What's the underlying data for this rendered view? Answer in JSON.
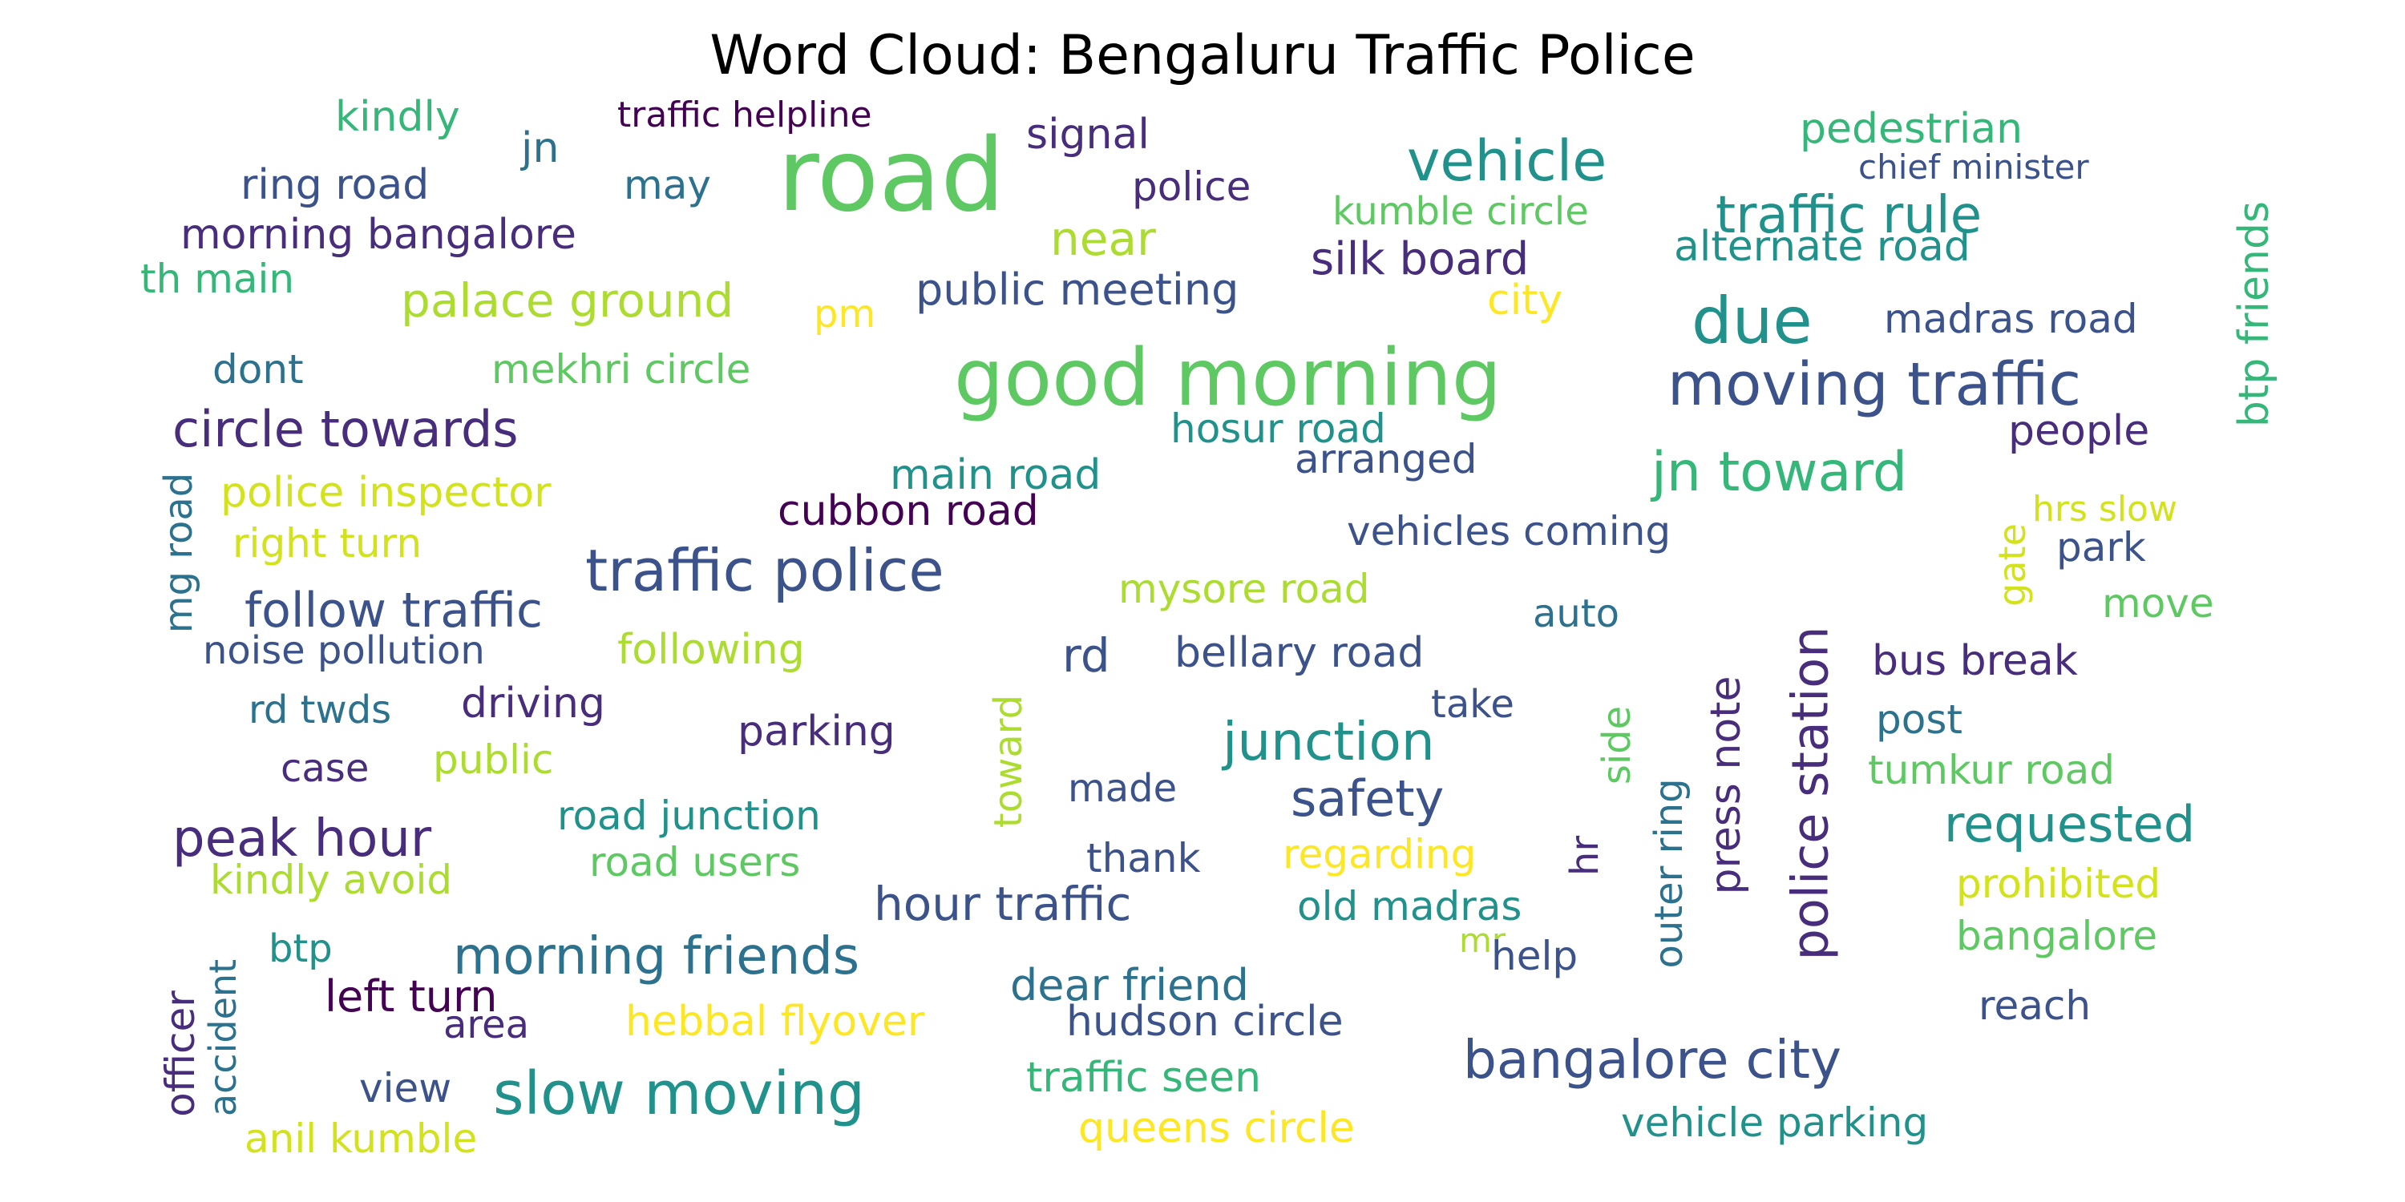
{
  "chart_data": {
    "type": "word-cloud",
    "title": "Word Cloud: Bengaluru Traffic Police",
    "words": [
      {
        "text": "road",
        "color": "#5ec962"
      },
      {
        "text": "good morning",
        "color": "#5ec962"
      },
      {
        "text": "moving traffic",
        "color": "#3b528b"
      },
      {
        "text": "traffic police",
        "color": "#3b528b"
      },
      {
        "text": "due",
        "color": "#21918c"
      },
      {
        "text": "vehicle",
        "color": "#21918c"
      },
      {
        "text": "traffic rule",
        "color": "#21918c"
      },
      {
        "text": "jn toward",
        "color": "#35b779"
      },
      {
        "text": "circle towards",
        "color": "#472d7b"
      },
      {
        "text": "bangalore city",
        "color": "#3b528b"
      },
      {
        "text": "slow moving",
        "color": "#21918c"
      },
      {
        "text": "morning friends",
        "color": "#2c728e"
      },
      {
        "text": "peak hour",
        "color": "#472d7b"
      },
      {
        "text": "junction",
        "color": "#21918c"
      },
      {
        "text": "safety",
        "color": "#3b528b"
      },
      {
        "text": "requested",
        "color": "#21918c"
      },
      {
        "text": "follow traffic",
        "color": "#3b528b"
      },
      {
        "text": "hour traffic",
        "color": "#3b528b"
      },
      {
        "text": "police station",
        "color": "#472d7b"
      },
      {
        "text": "press note",
        "color": "#472d7b"
      },
      {
        "text": "outer ring",
        "color": "#2c728e"
      },
      {
        "text": "silk board",
        "color": "#472d7b"
      },
      {
        "text": "near",
        "color": "#addc30"
      },
      {
        "text": "signal",
        "color": "#472d7b"
      },
      {
        "text": "pedestrian",
        "color": "#35b779"
      },
      {
        "text": "kindly",
        "color": "#35b779"
      },
      {
        "text": "traffic helpline",
        "color": "#440154"
      },
      {
        "text": "jn",
        "color": "#2c728e"
      },
      {
        "text": "ring road",
        "color": "#3b528b"
      },
      {
        "text": "may",
        "color": "#2c728e"
      },
      {
        "text": "police",
        "color": "#472d7b"
      },
      {
        "text": "chief minister",
        "color": "#3b528b"
      },
      {
        "text": "kumble circle",
        "color": "#5ec962"
      },
      {
        "text": "morning bangalore",
        "color": "#472d7b"
      },
      {
        "text": "alternate road",
        "color": "#21918c"
      },
      {
        "text": "th main",
        "color": "#35b779"
      },
      {
        "text": "palace ground",
        "color": "#addc30"
      },
      {
        "text": "pm",
        "color": "#fde725"
      },
      {
        "text": "public meeting",
        "color": "#3b528b"
      },
      {
        "text": "city",
        "color": "#fde725"
      },
      {
        "text": "madras road",
        "color": "#3b528b"
      },
      {
        "text": "btp friends",
        "color": "#35b779"
      },
      {
        "text": "dont",
        "color": "#2c728e"
      },
      {
        "text": "mekhri circle",
        "color": "#5ec962"
      },
      {
        "text": "hosur road",
        "color": "#21918c"
      },
      {
        "text": "people",
        "color": "#472d7b"
      },
      {
        "text": "arranged",
        "color": "#3b528b"
      },
      {
        "text": "mg road",
        "color": "#2c728e"
      },
      {
        "text": "police inspector",
        "color": "#d2e21b"
      },
      {
        "text": "main road",
        "color": "#21918c"
      },
      {
        "text": "cubbon road",
        "color": "#440154"
      },
      {
        "text": "gate",
        "color": "#d2e21b"
      },
      {
        "text": "hrs slow",
        "color": "#d2e21b"
      },
      {
        "text": "right turn",
        "color": "#d2e21b"
      },
      {
        "text": "vehicles coming",
        "color": "#3b528b"
      },
      {
        "text": "park",
        "color": "#3b528b"
      },
      {
        "text": "mysore road",
        "color": "#addc30"
      },
      {
        "text": "move",
        "color": "#5ec962"
      },
      {
        "text": "noise pollution",
        "color": "#3b528b"
      },
      {
        "text": "following",
        "color": "#addc30"
      },
      {
        "text": "auto",
        "color": "#2c728e"
      },
      {
        "text": "rd",
        "color": "#3b528b"
      },
      {
        "text": "bellary road",
        "color": "#3b528b"
      },
      {
        "text": "bus break",
        "color": "#472d7b"
      },
      {
        "text": "rd twds",
        "color": "#2c728e"
      },
      {
        "text": "driving",
        "color": "#472d7b"
      },
      {
        "text": "toward",
        "color": "#addc30"
      },
      {
        "text": "take",
        "color": "#3b528b"
      },
      {
        "text": "side",
        "color": "#5ec962"
      },
      {
        "text": "post",
        "color": "#2c728e"
      },
      {
        "text": "case",
        "color": "#472d7b"
      },
      {
        "text": "public",
        "color": "#addc30"
      },
      {
        "text": "parking",
        "color": "#472d7b"
      },
      {
        "text": "tumkur road",
        "color": "#5ec962"
      },
      {
        "text": "made",
        "color": "#3b528b"
      },
      {
        "text": "road junction",
        "color": "#21918c"
      },
      {
        "text": "thank",
        "color": "#3b528b"
      },
      {
        "text": "regarding",
        "color": "#fde725"
      },
      {
        "text": "hr",
        "color": "#472d7b"
      },
      {
        "text": "kindly avoid",
        "color": "#addc30"
      },
      {
        "text": "road users",
        "color": "#5ec962"
      },
      {
        "text": "old madras",
        "color": "#21918c"
      },
      {
        "text": "prohibited",
        "color": "#d2e21b"
      },
      {
        "text": "accident",
        "color": "#2c728e"
      },
      {
        "text": "officer",
        "color": "#472d7b"
      },
      {
        "text": "btp",
        "color": "#21918c"
      },
      {
        "text": "mr",
        "color": "#addc30"
      },
      {
        "text": "help",
        "color": "#3b528b"
      },
      {
        "text": "bangalore",
        "color": "#5ec962"
      },
      {
        "text": "dear friend",
        "color": "#2c728e"
      },
      {
        "text": "left turn",
        "color": "#440154"
      },
      {
        "text": "area",
        "color": "#472d7b"
      },
      {
        "text": "hebbal flyover",
        "color": "#fde725"
      },
      {
        "text": "hudson circle",
        "color": "#3b528b"
      },
      {
        "text": "reach",
        "color": "#3b528b"
      },
      {
        "text": "view",
        "color": "#3b528b"
      },
      {
        "text": "traffic seen",
        "color": "#35b779"
      },
      {
        "text": "vehicle parking",
        "color": "#21918c"
      },
      {
        "text": "anil kumble",
        "color": "#d2e21b"
      },
      {
        "text": "queens circle",
        "color": "#fde725"
      }
    ]
  }
}
